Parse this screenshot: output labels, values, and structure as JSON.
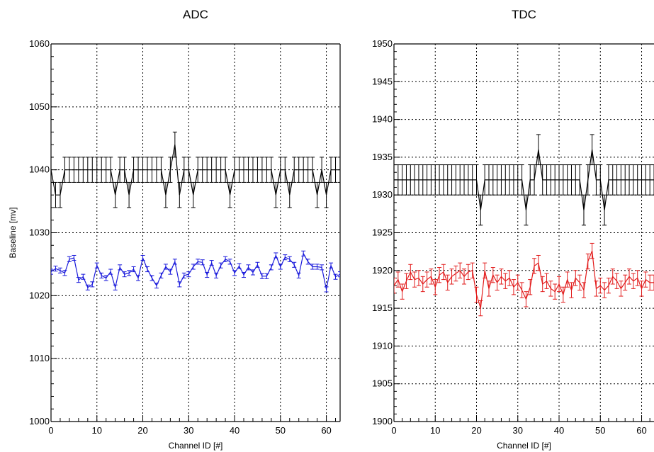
{
  "chart_data": [
    {
      "type": "line",
      "title": "ADC",
      "xlabel": "Channel ID [#]",
      "ylabel": "Baseline [mv]",
      "xlim": [
        0,
        63
      ],
      "ylim": [
        1000,
        1060
      ],
      "xticks": [
        0,
        10,
        20,
        30,
        40,
        50,
        60
      ],
      "yticks": [
        1000,
        1010,
        1020,
        1030,
        1040,
        1050,
        1060
      ],
      "grid": true,
      "series": [
        {
          "color": "#000000",
          "x": [
            0,
            1,
            2,
            3,
            4,
            5,
            6,
            7,
            8,
            9,
            10,
            11,
            12,
            13,
            14,
            15,
            16,
            17,
            18,
            19,
            20,
            21,
            22,
            23,
            24,
            25,
            26,
            27,
            28,
            29,
            30,
            31,
            32,
            33,
            34,
            35,
            36,
            37,
            38,
            39,
            40,
            41,
            42,
            43,
            44,
            45,
            46,
            47,
            48,
            49,
            50,
            51,
            52,
            53,
            54,
            55,
            56,
            57,
            58,
            59,
            60,
            61,
            62,
            63
          ],
          "y": [
            1040,
            1036,
            1036,
            1040,
            1040,
            1040,
            1040,
            1040,
            1040,
            1040,
            1040,
            1040,
            1040,
            1040,
            1036,
            1040,
            1040,
            1036,
            1040,
            1040,
            1040,
            1040,
            1040,
            1040,
            1040,
            1036,
            1040,
            1044,
            1036,
            1040,
            1040,
            1036,
            1040,
            1040,
            1040,
            1040,
            1040,
            1040,
            1040,
            1036,
            1040,
            1040,
            1040,
            1040,
            1040,
            1040,
            1040,
            1040,
            1040,
            1036,
            1040,
            1040,
            1036,
            1040,
            1040,
            1040,
            1040,
            1040,
            1036,
            1040,
            1036,
            1040,
            1040,
            1040
          ],
          "err": 2
        },
        {
          "color": "#1a1adb",
          "x": [
            0,
            1,
            2,
            3,
            4,
            5,
            6,
            7,
            8,
            9,
            10,
            11,
            12,
            13,
            14,
            15,
            16,
            17,
            18,
            19,
            20,
            21,
            22,
            23,
            24,
            25,
            26,
            27,
            28,
            29,
            30,
            31,
            32,
            33,
            34,
            35,
            36,
            37,
            38,
            39,
            40,
            41,
            42,
            43,
            44,
            45,
            46,
            47,
            48,
            49,
            50,
            51,
            52,
            53,
            54,
            55,
            56,
            57,
            58,
            59,
            60,
            61,
            62,
            63
          ],
          "y": [
            1023.8,
            1024.3,
            1024,
            1023.6,
            1025.8,
            1026,
            1022.5,
            1023,
            1021.3,
            1021.8,
            1024.8,
            1023.2,
            1022.8,
            1023.8,
            1021.3,
            1024.5,
            1023.4,
            1023.6,
            1024.2,
            1022.8,
            1026,
            1024.2,
            1022.8,
            1021.6,
            1023.2,
            1024.6,
            1023.8,
            1025.4,
            1021.8,
            1023.2,
            1023.4,
            1024.6,
            1025.4,
            1025.3,
            1023.3,
            1025.2,
            1023.2,
            1024.8,
            1025.8,
            1025.4,
            1023.6,
            1024.7,
            1023.3,
            1024.5,
            1023.7,
            1024.9,
            1023.1,
            1023.1,
            1024.5,
            1026.4,
            1024.6,
            1026.1,
            1025.8,
            1024.9,
            1023.2,
            1026.7,
            1025.4,
            1024.6,
            1024.6,
            1024.5,
            1021,
            1024.8,
            1023,
            1023.4
          ],
          "err": 0.4
        }
      ]
    },
    {
      "type": "line",
      "title": "TDC",
      "xlabel": "Channel ID [#]",
      "ylabel": "",
      "xlim": [
        0,
        63
      ],
      "ylim": [
        1900,
        1950
      ],
      "xticks": [
        0,
        10,
        20,
        30,
        40,
        50,
        60
      ],
      "yticks": [
        1900,
        1905,
        1910,
        1915,
        1920,
        1925,
        1930,
        1935,
        1940,
        1945,
        1950
      ],
      "grid": true,
      "series": [
        {
          "color": "#000000",
          "x": [
            0,
            1,
            2,
            3,
            4,
            5,
            6,
            7,
            8,
            9,
            10,
            11,
            12,
            13,
            14,
            15,
            16,
            17,
            18,
            19,
            20,
            21,
            22,
            23,
            24,
            25,
            26,
            27,
            28,
            29,
            30,
            31,
            32,
            33,
            34,
            35,
            36,
            37,
            38,
            39,
            40,
            41,
            42,
            43,
            44,
            45,
            46,
            47,
            48,
            49,
            50,
            51,
            52,
            53,
            54,
            55,
            56,
            57,
            58,
            59,
            60,
            61,
            62,
            63
          ],
          "y": [
            1932,
            1932,
            1932,
            1932,
            1932,
            1932,
            1932,
            1932,
            1932,
            1932,
            1932,
            1932,
            1932,
            1932,
            1932,
            1932,
            1932,
            1932,
            1932,
            1932,
            1932,
            1928,
            1932,
            1932,
            1932,
            1932,
            1932,
            1932,
            1932,
            1932,
            1932,
            1932,
            1928,
            1932,
            1932,
            1936,
            1932,
            1932,
            1932,
            1932,
            1932,
            1932,
            1932,
            1932,
            1932,
            1932,
            1928,
            1932,
            1936,
            1932,
            1932,
            1928,
            1932,
            1932,
            1932,
            1932,
            1932,
            1932,
            1932,
            1932,
            1932,
            1932,
            1932,
            1932
          ],
          "err": 2
        },
        {
          "color": "#e21b1b",
          "x": [
            0,
            1,
            2,
            3,
            4,
            5,
            6,
            7,
            8,
            9,
            10,
            11,
            12,
            13,
            14,
            15,
            16,
            17,
            18,
            19,
            20,
            21,
            22,
            23,
            24,
            25,
            26,
            27,
            28,
            29,
            30,
            31,
            32,
            33,
            34,
            35,
            36,
            37,
            38,
            39,
            40,
            41,
            42,
            43,
            44,
            45,
            46,
            47,
            48,
            49,
            50,
            51,
            52,
            53,
            54,
            55,
            56,
            57,
            58,
            59,
            60,
            61,
            62,
            63
          ],
          "y": [
            1918,
            1918.8,
            1917.2,
            1918.6,
            1919.8,
            1918.8,
            1919,
            1918.2,
            1918.8,
            1919.2,
            1917.8,
            1919.4,
            1919.8,
            1918.4,
            1919.2,
            1919.6,
            1920,
            1919.2,
            1919.8,
            1920,
            1916.8,
            1915,
            1920,
            1917.6,
            1919.4,
            1918.4,
            1919.2,
            1918.6,
            1919,
            1917.8,
            1918.4,
            1917.4,
            1916.2,
            1917.8,
            1920.6,
            1921,
            1918.2,
            1918.6,
            1917.6,
            1917.2,
            1918.2,
            1916.8,
            1918.8,
            1917.4,
            1919,
            1918.4,
            1917.4,
            1921.2,
            1922.6,
            1917.6,
            1918,
            1917.4,
            1918,
            1919.2,
            1918.6,
            1917.6,
            1918.4,
            1919.2,
            1918.6,
            1919,
            1917.6,
            1918.8,
            1918.4,
            1918.4
          ],
          "err": 1
        }
      ]
    }
  ]
}
